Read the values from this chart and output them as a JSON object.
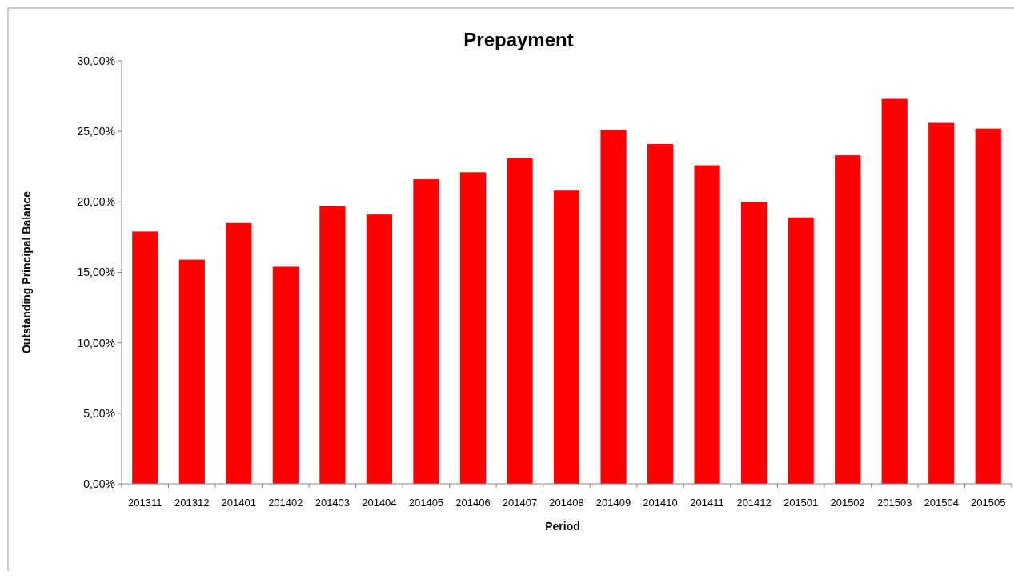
{
  "chart_data": {
    "type": "bar",
    "title": "Prepayment",
    "xlabel": "Period",
    "ylabel": "Outstanding Principal Balance",
    "categories": [
      "201311",
      "201312",
      "201401",
      "201402",
      "201403",
      "201404",
      "201405",
      "201406",
      "201407",
      "201408",
      "201409",
      "201410",
      "201411",
      "201412",
      "201501",
      "201502",
      "201503",
      "201504",
      "201505"
    ],
    "series": [
      {
        "color": "#ff0000",
        "values": [
          17.9,
          15.9,
          18.5,
          15.4,
          19.7,
          19.1,
          21.6,
          22.1,
          23.1,
          20.8,
          25.1,
          24.1,
          22.6,
          20.0,
          18.9,
          23.3,
          27.3,
          25.6,
          25.2
        ]
      }
    ],
    "ylim": [
      0,
      30
    ],
    "yticks": [
      {
        "value": 0,
        "label": "0,00%"
      },
      {
        "value": 5,
        "label": "5,00%"
      },
      {
        "value": 10,
        "label": "10,00%"
      },
      {
        "value": 15,
        "label": "15,00%"
      },
      {
        "value": 20,
        "label": "20,00%"
      },
      {
        "value": 25,
        "label": "25,00%"
      },
      {
        "value": 30,
        "label": "30,00%"
      }
    ],
    "grid": false
  }
}
